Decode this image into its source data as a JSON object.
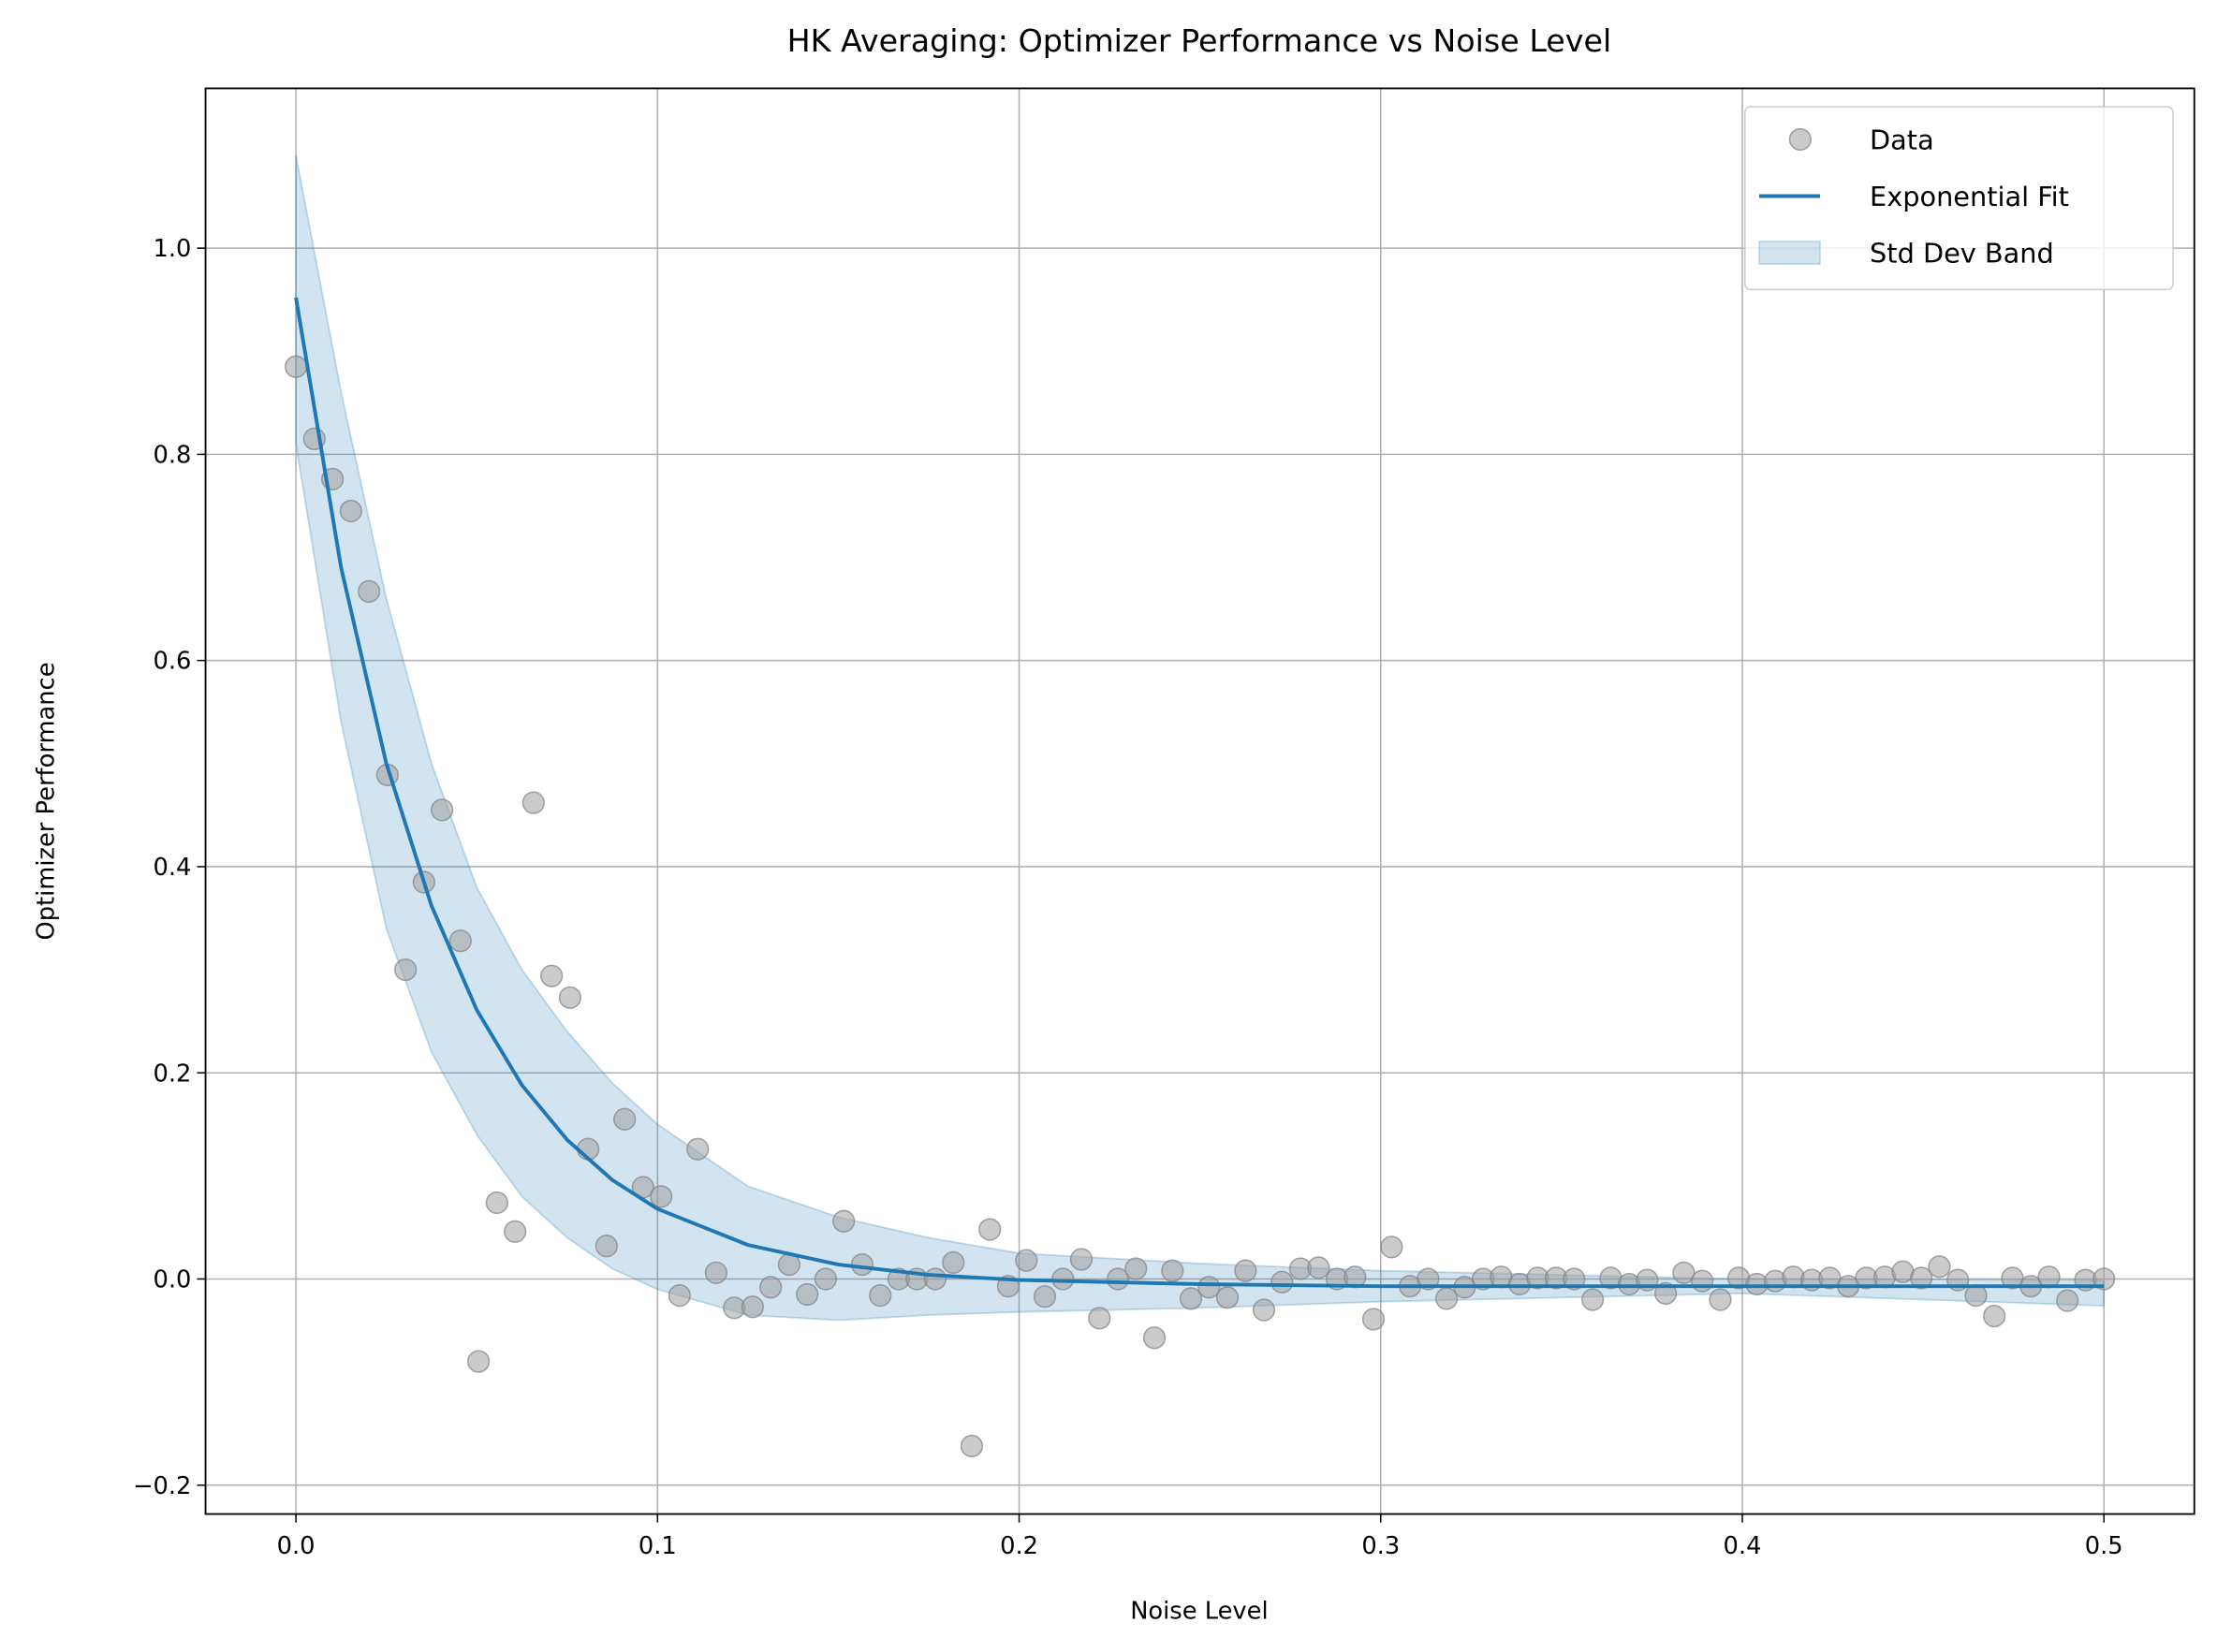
{
  "chart_data": {
    "type": "scatter",
    "title": "HK Averaging: Optimizer Performance vs Noise Level",
    "xlabel": "Noise Level",
    "ylabel": "Optimizer Performance",
    "xlim": [
      -0.025,
      0.525
    ],
    "ylim": [
      -0.228,
      1.155
    ],
    "xticks": [
      {
        "value": 0,
        "label": "0.0"
      },
      0.1,
      0.2,
      0.3,
      0.4,
      0.5
    ],
    "yticks": [
      {
        "value": -0.2,
        "label": "−0.2"
      },
      {
        "value": 0,
        "label": "0.0"
      },
      0.2,
      0.4,
      0.6,
      0.8,
      {
        "value": 1,
        "label": "1.0"
      }
    ],
    "grid": true,
    "legend": "upper right",
    "series": [
      {
        "name": "Data",
        "kind": "scatter",
        "color": "#a0a0a0",
        "x": [
          0,
          0.0051,
          0.0101,
          0.0152,
          0.0202,
          0.0253,
          0.0303,
          0.0354,
          0.0404,
          0.0455,
          0.0505,
          0.0556,
          0.0606,
          0.0657,
          0.0707,
          0.0758,
          0.0808,
          0.0859,
          0.0909,
          0.096,
          0.101,
          0.1061,
          0.1111,
          0.1162,
          0.1212,
          0.1263,
          0.1313,
          0.1364,
          0.1414,
          0.1465,
          0.1515,
          0.1566,
          0.1616,
          0.1667,
          0.1717,
          0.1768,
          0.1818,
          0.1869,
          0.1919,
          0.197,
          0.202,
          0.2071,
          0.2121,
          0.2172,
          0.2222,
          0.2273,
          0.2323,
          0.2374,
          0.2424,
          0.2475,
          0.2525,
          0.2576,
          0.2626,
          0.2677,
          0.2727,
          0.2778,
          0.2828,
          0.2879,
          0.2929,
          0.298,
          0.303,
          0.3081,
          0.3131,
          0.3182,
          0.3232,
          0.3283,
          0.3333,
          0.3384,
          0.3434,
          0.3485,
          0.3535,
          0.3586,
          0.3636,
          0.3687,
          0.3737,
          0.3788,
          0.3838,
          0.3889,
          0.3939,
          0.399,
          0.404,
          0.4091,
          0.4141,
          0.4192,
          0.4242,
          0.4293,
          0.4343,
          0.4394,
          0.4444,
          0.4495,
          0.4545,
          0.4596,
          0.4646,
          0.4697,
          0.4747,
          0.4798,
          0.4848,
          0.4899,
          0.4949,
          0.5
        ],
        "values": [
          0.885,
          0.815,
          0.776,
          0.745,
          0.667,
          0.489,
          0.3,
          0.385,
          0.455,
          0.328,
          -0.08,
          0.074,
          0.046,
          0.462,
          0.294,
          0.273,
          0.126,
          0.032,
          0.155,
          0.089,
          0.08,
          -0.016,
          0.126,
          0.006,
          -0.028,
          -0.027,
          -0.008,
          0.014,
          -0.015,
          0,
          0.056,
          0.014,
          -0.016,
          0,
          0,
          0,
          0.016,
          -0.162,
          0.048,
          -0.007,
          0.018,
          -0.017,
          0,
          0.019,
          -0.038,
          0,
          0.01,
          -0.057,
          0.008,
          -0.019,
          -0.008,
          -0.018,
          0.008,
          -0.03,
          -0.003,
          0.01,
          0.011,
          0,
          0.002,
          -0.039,
          0.031,
          -0.007,
          0,
          -0.019,
          -0.008,
          0,
          0.002,
          -0.005,
          0.001,
          0.001,
          0,
          -0.02,
          0.001,
          -0.005,
          -0.001,
          -0.014,
          0.006,
          -0.002,
          -0.02,
          0.001,
          -0.005,
          -0.002,
          0.002,
          -0.001,
          0.001,
          -0.007,
          0.001,
          0.002,
          0.007,
          0.001,
          0.012,
          -0.001,
          -0.016,
          -0.036,
          0.001,
          -0.007,
          0.002,
          -0.021,
          -0.001,
          0
        ]
      },
      {
        "name": "Exponential Fit",
        "kind": "line",
        "color": "#1f77b4",
        "x": [
          0,
          0.0125,
          0.025,
          0.0375,
          0.05,
          0.0625,
          0.075,
          0.0875,
          0.1,
          0.125,
          0.15,
          0.175,
          0.2,
          0.25,
          0.3,
          0.4,
          0.5
        ],
        "values": [
          0.952,
          0.69,
          0.5,
          0.362,
          0.261,
          0.188,
          0.135,
          0.096,
          0.068,
          0.033,
          0.014,
          0.004,
          -0.001,
          -0.005,
          -0.007,
          -0.007,
          -0.007
        ]
      },
      {
        "name": "Std Dev Band",
        "kind": "band",
        "color": "#1f77b4",
        "x": [
          0,
          0.0125,
          0.025,
          0.0375,
          0.05,
          0.0625,
          0.075,
          0.0875,
          0.1,
          0.125,
          0.15,
          0.175,
          0.2,
          0.25,
          0.3,
          0.4,
          0.5
        ],
        "upper": [
          1.09,
          0.86,
          0.66,
          0.5,
          0.38,
          0.3,
          0.24,
          0.19,
          0.15,
          0.09,
          0.06,
          0.04,
          0.025,
          0.015,
          0.008,
          0,
          -0.001
        ],
        "lower": [
          0.81,
          0.54,
          0.34,
          0.22,
          0.14,
          0.08,
          0.04,
          0.01,
          -0.01,
          -0.035,
          -0.04,
          -0.035,
          -0.032,
          -0.028,
          -0.022,
          -0.014,
          -0.026
        ]
      }
    ]
  }
}
